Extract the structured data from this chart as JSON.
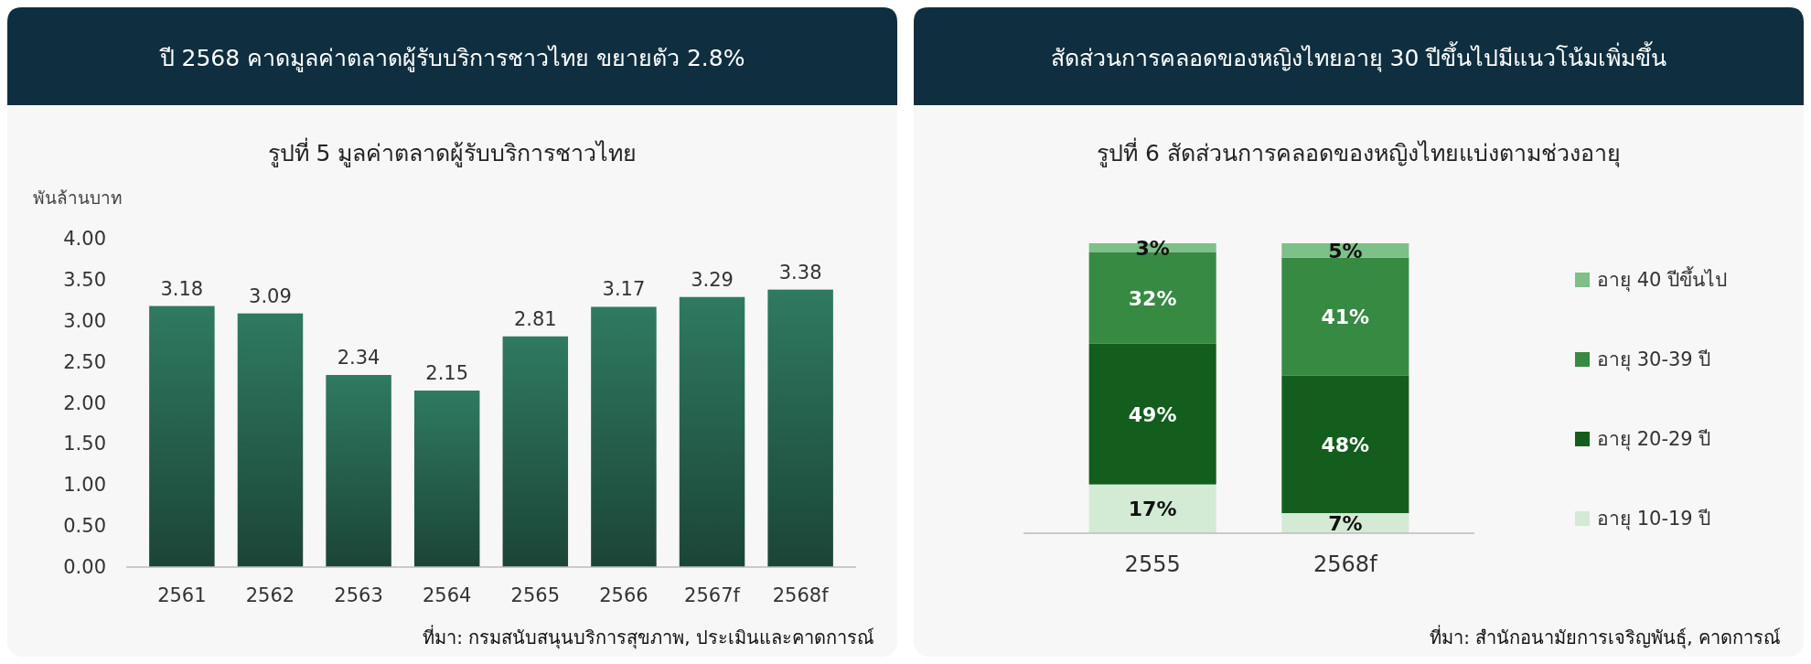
{
  "chart_data": [
    {
      "type": "bar",
      "title": "ปี 2568 คาดมูลค่าตลาดผู้รับบริการชาวไทย ขยายตัว 2.8%",
      "subtitle": "รูปที่ 5 มูลค่าตลาดผู้รับบริการชาวไทย",
      "ylabel": "พันล้านบาท",
      "categories": [
        "2561",
        "2562",
        "2563",
        "2564",
        "2565",
        "2566",
        "2567f",
        "2568f"
      ],
      "values": [
        3.18,
        3.09,
        2.34,
        2.15,
        2.81,
        3.17,
        3.29,
        3.38
      ],
      "color": "#2f7a60",
      "ylim": [
        0,
        4
      ],
      "yticks": [
        {
          "value": 0,
          "label": "0.00"
        },
        {
          "value": 0.5,
          "label": "0.50"
        },
        {
          "value": 1,
          "label": "1.00"
        },
        {
          "value": 1.5,
          "label": "1.50"
        },
        {
          "value": 2,
          "label": "2.00"
        },
        {
          "value": 2.5,
          "label": "2.50"
        },
        {
          "value": 3,
          "label": "3.00"
        },
        {
          "value": 3.5,
          "label": "3.50"
        },
        {
          "value": 4,
          "label": "4.00"
        }
      ],
      "data_labels": true,
      "grid": false,
      "legend": false,
      "annotations": [
        "ที่มา: กรมสนับสนุนบริการสุขภาพ, ประเมินและคาดการณ์"
      ]
    },
    {
      "type": "bar",
      "title": "สัดส่วนการคลอดของหญิงไทยอายุ 30 ปีขึ้นไปมีแนวโน้มเพิ่มขึ้น",
      "subtitle": "รูปที่ 6 สัดส่วนการคลอดของหญิงไทยแบ่งตามช่วงอายุ",
      "categories": [
        "2555",
        "2568f"
      ],
      "stacked": true,
      "legend": "right",
      "series": [
        {
          "name": "อายุ 10-19 ปี",
          "color": "#d3ead5",
          "values": [
            17,
            7
          ],
          "value_labels": [
            "17%",
            "7%"
          ]
        },
        {
          "name": "อายุ 20-29 ปี",
          "color": "#135e1c",
          "values": [
            49,
            48
          ],
          "value_labels": [
            "49%",
            "48%"
          ]
        },
        {
          "name": "อายุ 30-39 ปี",
          "color": "#378a42",
          "values": [
            32,
            41
          ],
          "value_labels": [
            "32%",
            "41%"
          ]
        },
        {
          "name": "อายุ 40 ปีขึ้นไป",
          "color": "#7dc088",
          "values": [
            3,
            5
          ],
          "value_labels": [
            "3%",
            "5%"
          ]
        }
      ],
      "annotations": [
        "ที่มา: สำนักอนามัยการเจริญพันธุ์, คาดการณ์"
      ]
    }
  ]
}
